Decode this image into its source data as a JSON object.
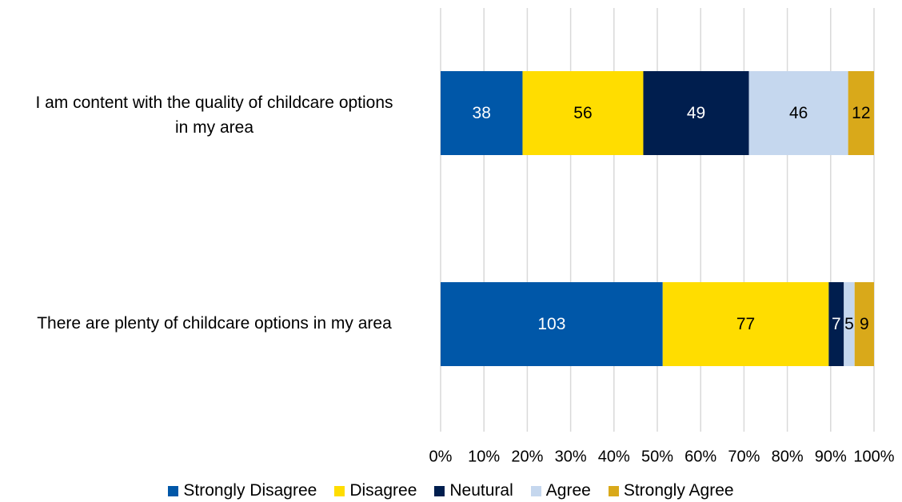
{
  "chart_data": {
    "type": "bar",
    "orientation": "horizontal",
    "stacked": "percent",
    "categories": [
      "I am content with the quality of childcare options in my area",
      "There are plenty of childcare options in my area"
    ],
    "series": [
      {
        "name": "Strongly Disagree",
        "color": "#0057A8",
        "label_color": "#ffffff",
        "values": [
          38,
          103
        ]
      },
      {
        "name": "Disagree",
        "color": "#FFDD00",
        "label_color": "#000000",
        "values": [
          56,
          77
        ]
      },
      {
        "name": "Neutural",
        "color": "#001E4E",
        "label_color": "#ffffff",
        "values": [
          49,
          7
        ]
      },
      {
        "name": "Agree",
        "color": "#C5D7EE",
        "label_color": "#000000",
        "values": [
          46,
          5
        ]
      },
      {
        "name": "Strongly Agree",
        "color": "#D9A91A",
        "label_color": "#000000",
        "values": [
          12,
          9
        ]
      }
    ],
    "xlim": [
      0,
      100
    ],
    "xticks": [
      "0%",
      "10%",
      "20%",
      "30%",
      "40%",
      "50%",
      "60%",
      "70%",
      "80%",
      "90%",
      "100%"
    ],
    "grid": "vertical",
    "legend": "bottom"
  },
  "labels": {
    "cat0_line1": "I am content with the quality of childcare options",
    "cat0_line2": "in my area",
    "cat1_line1": "There are plenty of childcare options in my area"
  }
}
